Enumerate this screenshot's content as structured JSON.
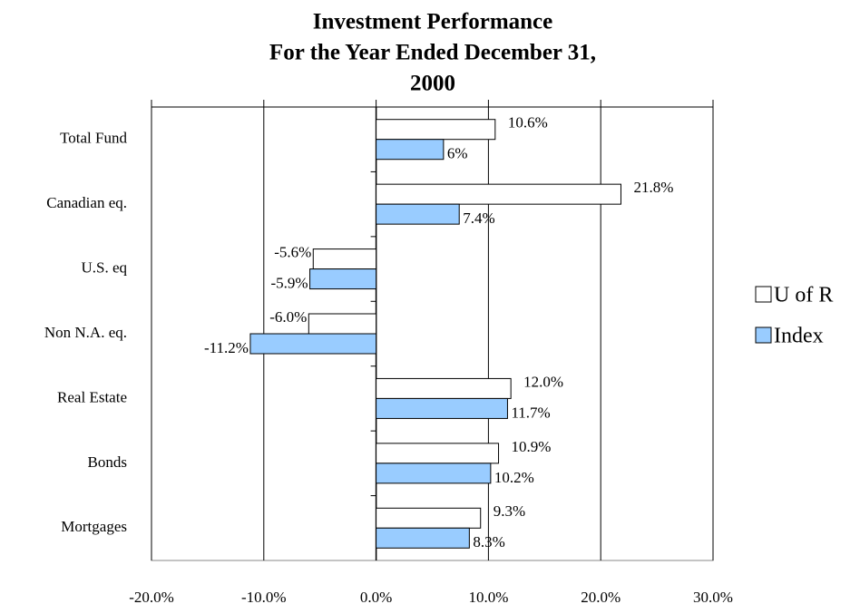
{
  "chart_data": {
    "type": "hbar",
    "title": [
      "Investment Performance",
      "For the Year Ended December 31,",
      "2000"
    ],
    "categories": [
      "Total Fund",
      "Canadian eq.",
      "U.S. eq",
      "Non N.A. eq.",
      "Real Estate",
      "Bonds",
      "Mortgages"
    ],
    "series": [
      {
        "name": "U of R",
        "color": "#ffffff",
        "values": [
          10.6,
          21.8,
          -5.6,
          -6.0,
          12.0,
          10.9,
          9.3
        ],
        "value_labels": [
          "10.6%",
          "21.8%",
          "-5.6%",
          "-6.0%",
          "12.0%",
          "10.9%",
          "9.3%"
        ]
      },
      {
        "name": "Index",
        "color": "#99ccff",
        "values": [
          6,
          7.4,
          -5.9,
          -11.2,
          11.7,
          10.2,
          8.3
        ],
        "value_labels": [
          "6%",
          "7.4%",
          "-5.9%",
          "-11.2%",
          "11.7%",
          "10.2%",
          "8.3%"
        ]
      }
    ],
    "xlim": [
      -20,
      30
    ],
    "xticks": [
      {
        "value": -20,
        "label": "-20.0%"
      },
      {
        "value": -10,
        "label": "-10.0%"
      },
      {
        "value": 0,
        "label": "0.0%"
      },
      {
        "value": 10,
        "label": "10.0%"
      },
      {
        "value": 20,
        "label": "20.0%"
      },
      {
        "value": 30,
        "label": "30.0%"
      }
    ],
    "grid": true,
    "legend": "right"
  }
}
